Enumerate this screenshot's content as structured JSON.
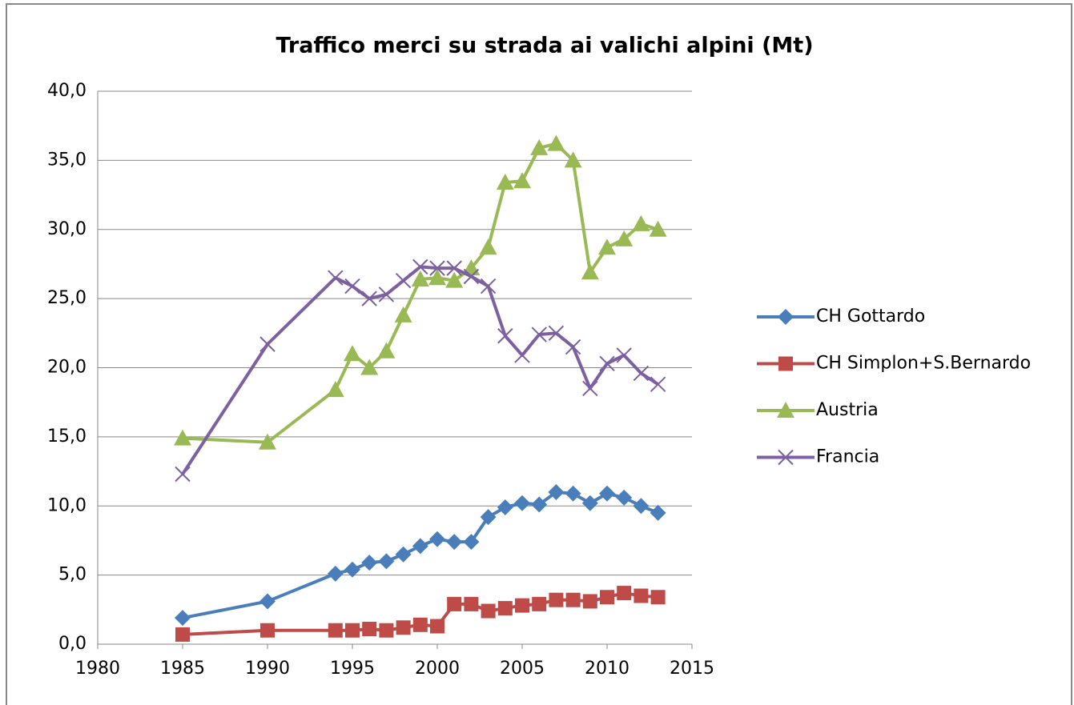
{
  "chart_data": {
    "type": "line",
    "title": "Traffico merci su strada ai valichi alpini (Mt)",
    "x": [
      1985,
      1990,
      1994,
      1995,
      1996,
      1997,
      1998,
      1999,
      2000,
      2001,
      2002,
      2003,
      2004,
      2005,
      2006,
      2007,
      2008,
      2009,
      2010,
      2011,
      2012,
      2013
    ],
    "series": [
      {
        "name": "CH Gottardo",
        "color": "#4a7ebb",
        "marker": "diamond",
        "values": [
          1.9,
          3.1,
          5.1,
          5.4,
          5.9,
          6.0,
          6.5,
          7.1,
          7.6,
          7.4,
          7.4,
          9.2,
          9.9,
          10.2,
          10.1,
          11.0,
          10.9,
          10.2,
          10.9,
          10.6,
          10.0,
          9.5
        ]
      },
      {
        "name": "CH Simplon+S.Bernardo",
        "color": "#be4b48",
        "marker": "square",
        "values": [
          0.7,
          1.0,
          1.0,
          1.0,
          1.1,
          1.0,
          1.2,
          1.4,
          1.3,
          2.9,
          2.9,
          2.4,
          2.6,
          2.8,
          2.9,
          3.2,
          3.2,
          3.1,
          3.4,
          3.7,
          3.5,
          3.4
        ]
      },
      {
        "name": "Austria",
        "color": "#98b954",
        "marker": "triangle",
        "values": [
          14.9,
          14.6,
          18.4,
          21.0,
          20.0,
          21.2,
          23.8,
          26.4,
          26.5,
          26.3,
          27.2,
          28.7,
          33.4,
          33.5,
          35.9,
          36.2,
          35.0,
          26.9,
          28.7,
          29.3,
          30.4,
          30.0
        ]
      },
      {
        "name": "Francia",
        "color": "#7d60a0",
        "marker": "x",
        "values": [
          12.3,
          21.7,
          26.5,
          25.9,
          25.0,
          25.3,
          26.3,
          27.3,
          27.2,
          27.2,
          26.6,
          25.9,
          22.3,
          20.9,
          22.4,
          22.5,
          21.5,
          18.5,
          20.3,
          20.9,
          19.6,
          18.8
        ]
      }
    ],
    "xlim": [
      1980,
      2015
    ],
    "xticks": [
      1980,
      1985,
      1990,
      1995,
      2000,
      2005,
      2010,
      2015
    ],
    "ylim": [
      0,
      40
    ],
    "yticks": [
      {
        "value": 0,
        "label": "0,0"
      },
      {
        "value": 5,
        "label": "5,0"
      },
      {
        "value": 10,
        "label": "10,0"
      },
      {
        "value": 15,
        "label": "15,0"
      },
      {
        "value": 20,
        "label": "20,0"
      },
      {
        "value": 25,
        "label": "25,0"
      },
      {
        "value": 30,
        "label": "30,0"
      },
      {
        "value": 35,
        "label": "35,0"
      },
      {
        "value": 40,
        "label": "40,0"
      }
    ],
    "grid": true,
    "legend": "right"
  }
}
